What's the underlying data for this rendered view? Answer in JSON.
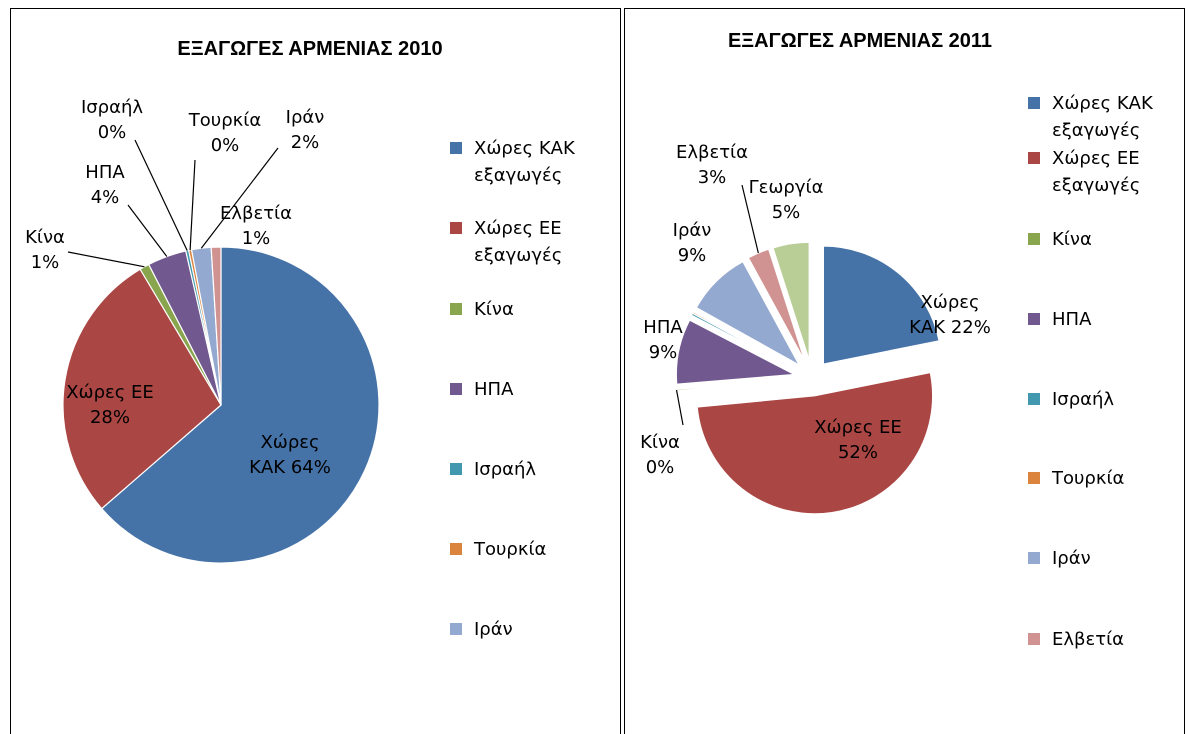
{
  "chart_data": [
    {
      "type": "pie",
      "title": "ΕΞΑΓΩΓΕΣ ΑΡΜΕΝΙΑΣ 2010",
      "categories": [
        "Χώρες ΚΑΚ",
        "Χώρες ΕΕ",
        "Κίνα",
        "ΗΠΑ",
        "Ισραήλ",
        "Τουρκία",
        "Ιράν",
        "Ελβετία"
      ],
      "values": [
        64,
        28,
        1,
        4,
        0.3,
        0.3,
        2,
        1
      ],
      "value_labels": [
        "64%",
        "28%",
        "1%",
        "4%",
        "0%",
        "0%",
        "2%",
        "1%"
      ],
      "colors": [
        "#4572a7",
        "#aa4643",
        "#89a54e",
        "#71588f",
        "#4198af",
        "#db843d",
        "#93a9cf",
        "#d19392"
      ],
      "legend": [
        "Χώρες ΚΑΚ εξαγωγές",
        "Χώρες ΕΕ εξαγωγές",
        "Κίνα",
        "ΗΠΑ",
        "Ισραήλ",
        "Τουρκία",
        "Ιράν"
      ]
    },
    {
      "type": "pie",
      "title": "ΕΞΑΓΩΓΕΣ ΑΡΜΕΝΙΑΣ 2011",
      "exploded": true,
      "categories": [
        "Χώρες ΚΑΚ",
        "Χώρες ΕΕ",
        "Κίνα",
        "ΗΠΑ",
        "Ισραήλ",
        "Τουρκία",
        "Ιράν",
        "Ελβετία",
        "Γεωργία"
      ],
      "values": [
        22,
        52,
        0.2,
        9,
        0.3,
        0.2,
        9,
        3,
        5
      ],
      "value_labels": [
        "22%",
        "52%",
        "0%",
        "9%",
        null,
        null,
        "9%",
        "3%",
        "5%"
      ],
      "colors": [
        "#4572a7",
        "#aa4643",
        "#89a54e",
        "#71588f",
        "#4198af",
        "#db843d",
        "#93a9cf",
        "#d19392",
        "#b9cd96"
      ],
      "legend": [
        "Χώρες ΚΑΚ εξαγωγές",
        "Χώρες ΕΕ εξαγωγές",
        "Κίνα",
        "ΗΠΑ",
        "Ισραήλ",
        "Τουρκία",
        "Ιράν",
        "Ελβετία"
      ]
    }
  ]
}
